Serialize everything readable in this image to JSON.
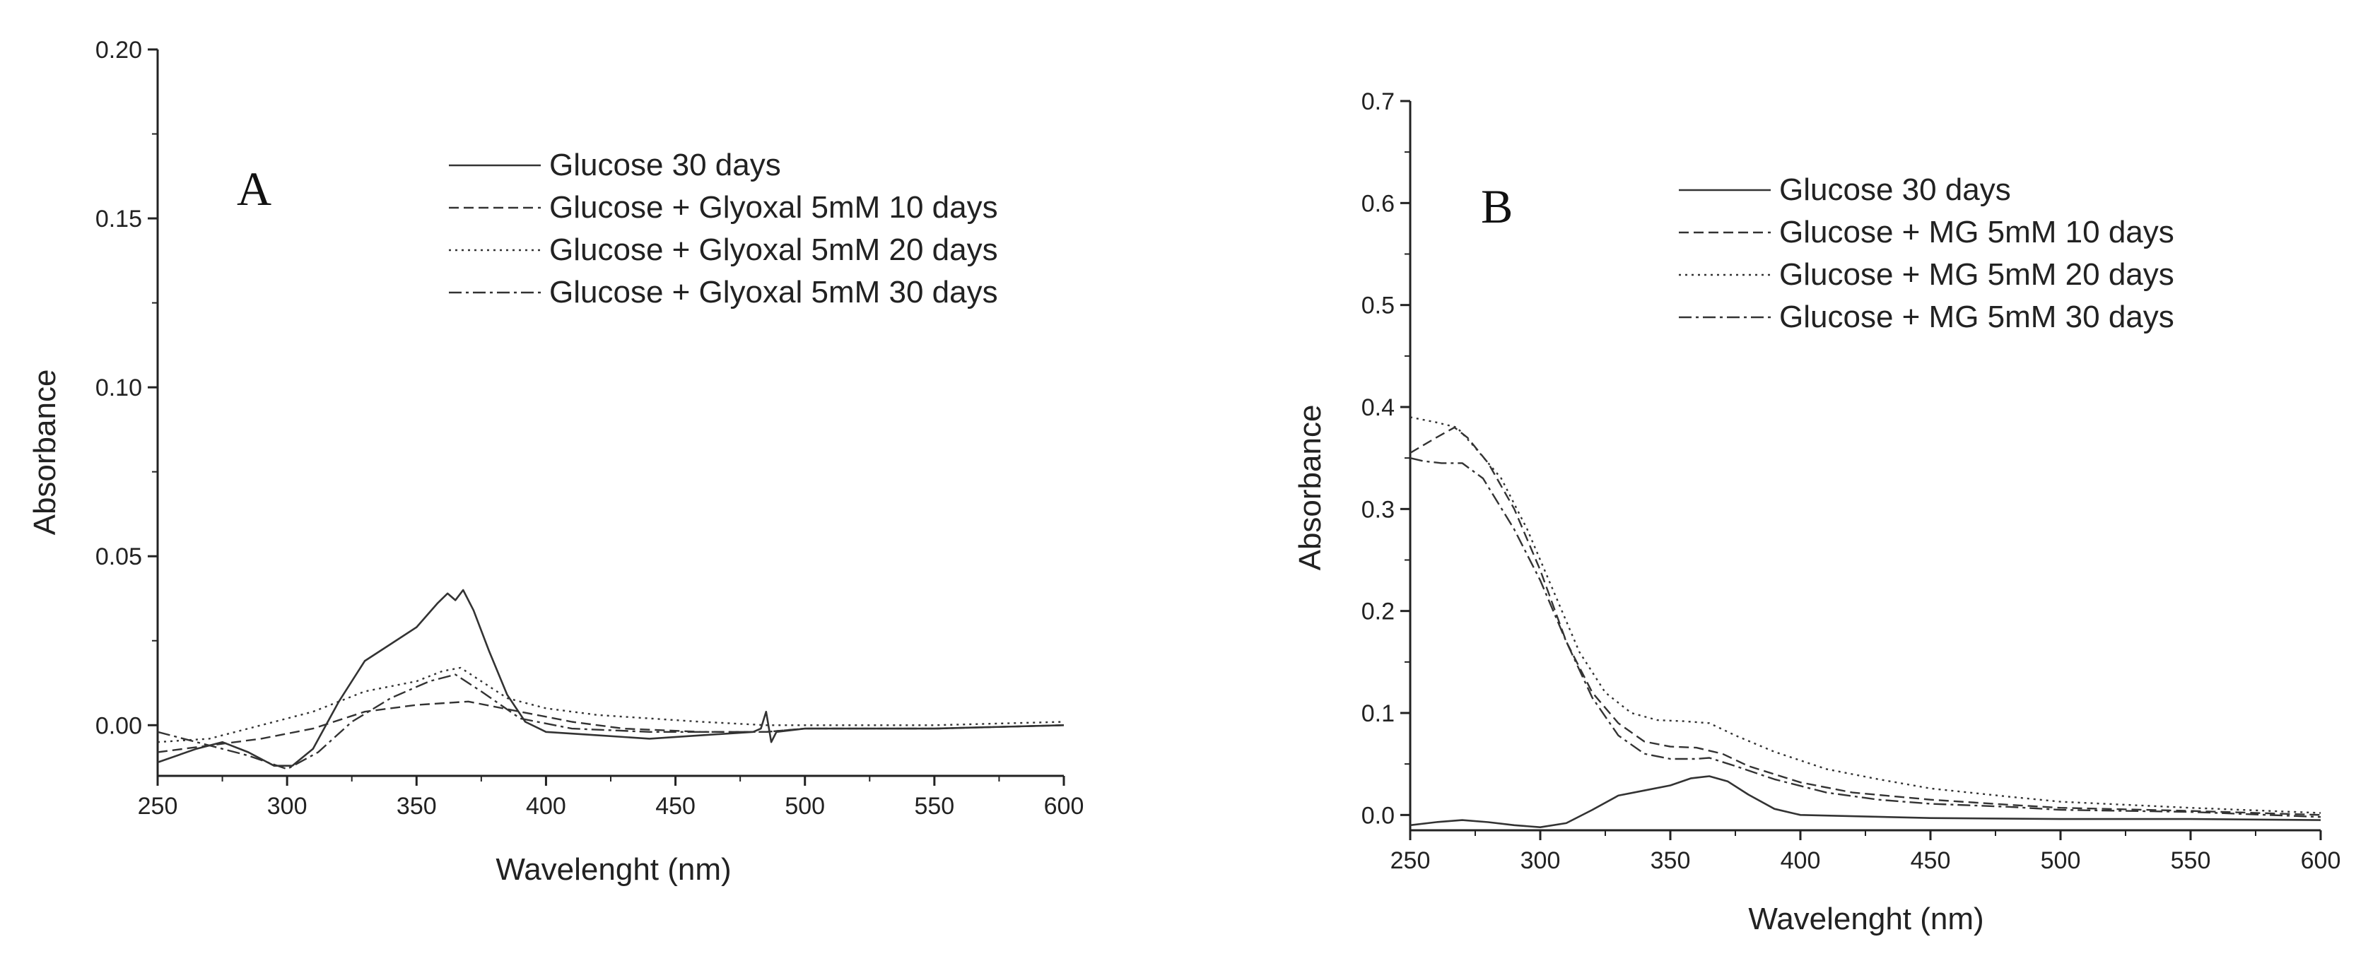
{
  "chart_data": [
    {
      "type": "line",
      "panel_label": "A",
      "title": "",
      "xlabel": "Wavelenght (nm)",
      "ylabel": "Absorbance",
      "xlim": [
        250,
        600
      ],
      "ylim": [
        -0.015,
        0.2
      ],
      "x_ticks": [
        "250",
        "300",
        "350",
        "400",
        "450",
        "500",
        "550",
        "600"
      ],
      "y_ticks": [
        "0.00",
        "0.05",
        "0.10",
        "0.15",
        "0.20"
      ],
      "legend_position": "top-right",
      "series": [
        {
          "name": "Glucose 30 days",
          "dash": "solid",
          "points": [
            [
              250,
              -0.011
            ],
            [
              265,
              -0.007
            ],
            [
              275,
              -0.005
            ],
            [
              285,
              -0.008
            ],
            [
              295,
              -0.012
            ],
            [
              302,
              -0.012
            ],
            [
              310,
              -0.007
            ],
            [
              320,
              0.007
            ],
            [
              330,
              0.019
            ],
            [
              340,
              0.024
            ],
            [
              350,
              0.029
            ],
            [
              358,
              0.036
            ],
            [
              362,
              0.039
            ],
            [
              365,
              0.037
            ],
            [
              368,
              0.04
            ],
            [
              372,
              0.034
            ],
            [
              378,
              0.022
            ],
            [
              385,
              0.009
            ],
            [
              392,
              0.001
            ],
            [
              400,
              -0.002
            ],
            [
              420,
              -0.003
            ],
            [
              440,
              -0.004
            ],
            [
              460,
              -0.003
            ],
            [
              480,
              -0.002
            ],
            [
              483,
              -0.001
            ],
            [
              485,
              0.004
            ],
            [
              487,
              -0.005
            ],
            [
              489,
              -0.002
            ],
            [
              500,
              -0.001
            ],
            [
              550,
              -0.001
            ],
            [
              600,
              0.0
            ]
          ]
        },
        {
          "name": "Glucose + Glyoxal 5mM 10 days",
          "dash": "dashed",
          "points": [
            [
              250,
              -0.008
            ],
            [
              270,
              -0.006
            ],
            [
              290,
              -0.004
            ],
            [
              310,
              -0.001
            ],
            [
              330,
              0.004
            ],
            [
              350,
              0.006
            ],
            [
              370,
              0.007
            ],
            [
              390,
              0.004
            ],
            [
              410,
              0.001
            ],
            [
              430,
              -0.001
            ],
            [
              460,
              -0.002
            ],
            [
              485,
              -0.002
            ],
            [
              500,
              -0.001
            ],
            [
              550,
              -0.001
            ],
            [
              600,
              0.0
            ]
          ]
        },
        {
          "name": "Glucose + Glyoxal 5mM 20 days",
          "dash": "dotted",
          "points": [
            [
              250,
              -0.005
            ],
            [
              270,
              -0.004
            ],
            [
              290,
              0.0
            ],
            [
              310,
              0.004
            ],
            [
              330,
              0.01
            ],
            [
              350,
              0.013
            ],
            [
              360,
              0.016
            ],
            [
              367,
              0.017
            ],
            [
              375,
              0.013
            ],
            [
              385,
              0.008
            ],
            [
              400,
              0.005
            ],
            [
              420,
              0.003
            ],
            [
              440,
              0.002
            ],
            [
              460,
              0.001
            ],
            [
              485,
              0.0
            ],
            [
              500,
              0.0
            ],
            [
              550,
              0.0
            ],
            [
              600,
              0.001
            ]
          ]
        },
        {
          "name": "Glucose + Glyoxal 5mM 30 days",
          "dash": "dashdot",
          "points": [
            [
              250,
              -0.002
            ],
            [
              270,
              -0.006
            ],
            [
              285,
              -0.009
            ],
            [
              300,
              -0.013
            ],
            [
              312,
              -0.008
            ],
            [
              325,
              0.001
            ],
            [
              340,
              0.008
            ],
            [
              355,
              0.013
            ],
            [
              365,
              0.015
            ],
            [
              375,
              0.01
            ],
            [
              390,
              0.002
            ],
            [
              410,
              -0.001
            ],
            [
              440,
              -0.002
            ],
            [
              470,
              -0.002
            ],
            [
              485,
              -0.002
            ],
            [
              500,
              -0.001
            ],
            [
              550,
              -0.001
            ],
            [
              600,
              0.0
            ]
          ]
        }
      ]
    },
    {
      "type": "line",
      "panel_label": "B",
      "title": "",
      "xlabel": "Wavelenght (nm)",
      "ylabel": "Absorbance",
      "xlim": [
        250,
        600
      ],
      "ylim": [
        -0.015,
        0.7
      ],
      "x_ticks": [
        "250",
        "300",
        "350",
        "400",
        "450",
        "500",
        "550",
        "600"
      ],
      "y_ticks": [
        "0.0",
        "0.1",
        "0.2",
        "0.3",
        "0.4",
        "0.5",
        "0.6",
        "0.7"
      ],
      "legend_position": "top-right",
      "series": [
        {
          "name": "Glucose 30 days",
          "dash": "solid",
          "points": [
            [
              250,
              -0.01
            ],
            [
              260,
              -0.007
            ],
            [
              270,
              -0.005
            ],
            [
              280,
              -0.007
            ],
            [
              290,
              -0.01
            ],
            [
              300,
              -0.012
            ],
            [
              310,
              -0.008
            ],
            [
              320,
              0.005
            ],
            [
              330,
              0.019
            ],
            [
              340,
              0.024
            ],
            [
              350,
              0.029
            ],
            [
              358,
              0.036
            ],
            [
              365,
              0.038
            ],
            [
              372,
              0.033
            ],
            [
              380,
              0.02
            ],
            [
              390,
              0.006
            ],
            [
              400,
              0.0
            ],
            [
              450,
              -0.003
            ],
            [
              500,
              -0.004
            ],
            [
              550,
              -0.004
            ],
            [
              600,
              -0.005
            ]
          ]
        },
        {
          "name": "Glucose + MG 5mM 10 days",
          "dash": "dashed",
          "points": [
            [
              250,
              0.355
            ],
            [
              260,
              0.37
            ],
            [
              267,
              0.38
            ],
            [
              272,
              0.37
            ],
            [
              280,
              0.345
            ],
            [
              290,
              0.3
            ],
            [
              300,
              0.24
            ],
            [
              310,
              0.17
            ],
            [
              320,
              0.12
            ],
            [
              330,
              0.09
            ],
            [
              340,
              0.072
            ],
            [
              350,
              0.067
            ],
            [
              360,
              0.066
            ],
            [
              365,
              0.063
            ],
            [
              370,
              0.06
            ],
            [
              380,
              0.048
            ],
            [
              400,
              0.032
            ],
            [
              420,
              0.022
            ],
            [
              450,
              0.015
            ],
            [
              480,
              0.01
            ],
            [
              500,
              0.007
            ],
            [
              550,
              0.004
            ],
            [
              600,
              0.0
            ]
          ]
        },
        {
          "name": "Glucose + MG 5mM 20 days",
          "dash": "dotted",
          "points": [
            [
              250,
              0.39
            ],
            [
              260,
              0.385
            ],
            [
              268,
              0.38
            ],
            [
              275,
              0.36
            ],
            [
              285,
              0.33
            ],
            [
              295,
              0.28
            ],
            [
              305,
              0.22
            ],
            [
              315,
              0.16
            ],
            [
              325,
              0.12
            ],
            [
              335,
              0.1
            ],
            [
              345,
              0.093
            ],
            [
              355,
              0.092
            ],
            [
              365,
              0.09
            ],
            [
              375,
              0.078
            ],
            [
              390,
              0.062
            ],
            [
              410,
              0.045
            ],
            [
              430,
              0.035
            ],
            [
              450,
              0.026
            ],
            [
              480,
              0.018
            ],
            [
              500,
              0.013
            ],
            [
              550,
              0.007
            ],
            [
              600,
              0.002
            ]
          ]
        },
        {
          "name": "Glucose + MG 5mM 30 days",
          "dash": "dashdot",
          "points": [
            [
              250,
              0.35
            ],
            [
              255,
              0.347
            ],
            [
              262,
              0.345
            ],
            [
              270,
              0.345
            ],
            [
              278,
              0.33
            ],
            [
              290,
              0.28
            ],
            [
              300,
              0.23
            ],
            [
              310,
              0.17
            ],
            [
              320,
              0.115
            ],
            [
              330,
              0.078
            ],
            [
              340,
              0.06
            ],
            [
              350,
              0.055
            ],
            [
              360,
              0.055
            ],
            [
              365,
              0.056
            ],
            [
              375,
              0.048
            ],
            [
              390,
              0.035
            ],
            [
              410,
              0.022
            ],
            [
              430,
              0.015
            ],
            [
              450,
              0.011
            ],
            [
              480,
              0.008
            ],
            [
              500,
              0.005
            ],
            [
              550,
              0.003
            ],
            [
              600,
              -0.002
            ]
          ]
        }
      ]
    }
  ]
}
